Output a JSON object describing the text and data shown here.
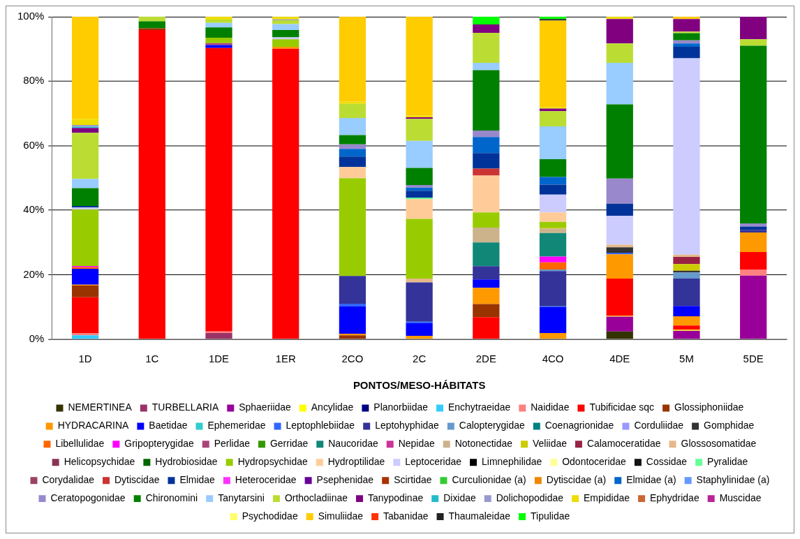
{
  "chart_data": {
    "type": "bar",
    "stacked": true,
    "xlabel": "PONTOS/MESO-HÁBITATS",
    "categories": [
      "1D",
      "1C",
      "1DE",
      "1ER",
      "2CO",
      "2C",
      "2DE",
      "4CO",
      "4DE",
      "5M",
      "5DE"
    ],
    "ylim": [
      0,
      100
    ],
    "yticks": [
      {
        "value": 0,
        "label": "0%"
      },
      {
        "value": 20,
        "label": "20%"
      },
      {
        "value": 40,
        "label": "40%"
      },
      {
        "value": 60,
        "label": "60%"
      },
      {
        "value": 80,
        "label": "80%"
      },
      {
        "value": 100,
        "label": "100%"
      }
    ],
    "grid": "y",
    "legend": "bottom",
    "series": [
      {
        "name": "NEMERTINEA",
        "color": "#333300",
        "values": [
          0,
          0,
          0,
          0,
          0,
          0,
          0,
          0,
          2.4,
          0,
          0
        ]
      },
      {
        "name": "TURBELLARIA",
        "color": "#993366",
        "values": [
          0,
          0,
          1.9,
          0,
          0,
          0,
          0,
          0,
          0,
          0,
          0
        ]
      },
      {
        "name": "Sphaeriidae",
        "color": "#990099",
        "values": [
          0,
          0,
          0,
          0,
          0,
          0,
          0,
          0,
          4.6,
          2.6,
          19.7
        ]
      },
      {
        "name": "Ancylidae",
        "color": "#ffff00",
        "values": [
          0,
          0,
          0,
          0,
          0,
          0,
          0,
          0,
          0.2,
          0.3,
          0
        ]
      },
      {
        "name": "Planorbiidae",
        "color": "#000080",
        "values": [
          0,
          0,
          0,
          0,
          0,
          0,
          0,
          0,
          0,
          0,
          0
        ]
      },
      {
        "name": "Enchytraeidae",
        "color": "#33ccff",
        "values": [
          1.2,
          0,
          0,
          0,
          0,
          0,
          0,
          0,
          0,
          0,
          0
        ]
      },
      {
        "name": "Naididae",
        "color": "#ff8080",
        "values": [
          0.7,
          0,
          0.5,
          0,
          0,
          0,
          0,
          0,
          0,
          0,
          1.8
        ]
      },
      {
        "name": "Tubificidae sqc",
        "color": "#ff0000",
        "values": [
          11.1,
          95.9,
          87.9,
          90.1,
          0,
          0,
          6.8,
          0,
          11.6,
          1.3,
          5.5
        ]
      },
      {
        "name": "Glossiphoniidae",
        "color": "#993300",
        "values": [
          3.6,
          0.5,
          0,
          0,
          1.2,
          0,
          4.1,
          0,
          0,
          0,
          0
        ]
      },
      {
        "name": "HYDRACARINA",
        "color": "#ff9900",
        "values": [
          0.3,
          0,
          0,
          0.6,
          0.5,
          1.0,
          5.0,
          1.9,
          7.5,
          2.9,
          6.1
        ]
      },
      {
        "name": "Baetidae",
        "color": "#0000ff",
        "values": [
          4.9,
          0,
          0.9,
          0,
          8.4,
          3.9,
          2.6,
          8.0,
          0,
          3.2,
          0
        ]
      },
      {
        "name": "Ephemeridae",
        "color": "#33cccc",
        "values": [
          0,
          0,
          0,
          0,
          0,
          0,
          0,
          0,
          0,
          0,
          0
        ]
      },
      {
        "name": "Leptophlebiidae",
        "color": "#3366ff",
        "values": [
          0,
          0,
          0,
          0,
          0.9,
          0.5,
          0,
          0.3,
          0.5,
          0,
          0
        ]
      },
      {
        "name": "Leptohyphidae",
        "color": "#333399",
        "values": [
          0,
          0,
          0,
          0,
          8.6,
          12.2,
          4.1,
          10.9,
          0,
          8.5,
          0.8
        ]
      },
      {
        "name": "Calopterygidae",
        "color": "#6699cc",
        "values": [
          0,
          0,
          0,
          0,
          0,
          0,
          0,
          0.5,
          0,
          1.9,
          0
        ]
      },
      {
        "name": "Coenagrionidae",
        "color": "#008080",
        "values": [
          0,
          0,
          0,
          0,
          0,
          0,
          0,
          0,
          0,
          0,
          0
        ]
      },
      {
        "name": "Corduliidae",
        "color": "#9999ff",
        "values": [
          0,
          0,
          0,
          0,
          0,
          0,
          0,
          0,
          0,
          0,
          0
        ]
      },
      {
        "name": "Gomphidae",
        "color": "#333333",
        "values": [
          0,
          0,
          0,
          0,
          0,
          0,
          0,
          0,
          1.7,
          0.5,
          0
        ]
      },
      {
        "name": "Libellulidae",
        "color": "#ff6600",
        "values": [
          0.5,
          0,
          0,
          0,
          0,
          0,
          0,
          2.2,
          0,
          0,
          0
        ]
      },
      {
        "name": "Gripopterygidae",
        "color": "#ff00ff",
        "values": [
          0.4,
          0,
          0,
          0,
          0,
          0,
          0,
          1.8,
          0,
          0,
          0
        ]
      },
      {
        "name": "Perlidae",
        "color": "#aa4477",
        "values": [
          0,
          0,
          0.6,
          0,
          0,
          0,
          0,
          0,
          0,
          0,
          0
        ]
      },
      {
        "name": "Gerridae",
        "color": "#339900",
        "values": [
          0,
          0,
          0,
          0,
          0,
          0,
          0,
          0,
          0,
          0,
          0
        ]
      },
      {
        "name": "Naucoridae",
        "color": "#118877",
        "values": [
          0,
          0,
          0,
          0,
          0,
          0,
          7.4,
          7.3,
          0,
          0,
          0
        ]
      },
      {
        "name": "Nepidae",
        "color": "#cc3399",
        "values": [
          0,
          0,
          0,
          0,
          0,
          0,
          0,
          0,
          0,
          0,
          0
        ]
      },
      {
        "name": "Notonectidae",
        "color": "#ccb38c",
        "values": [
          0,
          0,
          0,
          0,
          0,
          0,
          4.6,
          1.4,
          0,
          0,
          0
        ]
      },
      {
        "name": "Veliidae",
        "color": "#cccc00",
        "values": [
          0,
          0,
          0,
          0,
          0,
          0,
          0,
          0.3,
          0,
          2.1,
          0
        ]
      },
      {
        "name": "Calamoceratidae",
        "color": "#992244",
        "values": [
          0,
          0,
          0,
          0,
          0,
          0,
          0,
          0,
          0,
          2.2,
          0
        ]
      },
      {
        "name": "Glossosomatidae",
        "color": "#e6b88a",
        "values": [
          0,
          0,
          0,
          0,
          0,
          1.2,
          0,
          0,
          0.8,
          0.7,
          0
        ]
      },
      {
        "name": "Helicopsychidae",
        "color": "#883355",
        "values": [
          0,
          0,
          0,
          0,
          0,
          0,
          0,
          0,
          0,
          0,
          0
        ]
      },
      {
        "name": "Hydrobiosidae",
        "color": "#006600",
        "values": [
          0,
          0,
          0,
          0,
          0,
          0,
          0,
          0,
          0,
          0,
          0
        ]
      },
      {
        "name": "Hydropsychidae",
        "color": "#99cc00",
        "values": [
          17.5,
          0,
          1.7,
          2.3,
          30.3,
          18.5,
          4.7,
          1.8,
          0,
          0,
          0
        ]
      },
      {
        "name": "Hydroptilidae",
        "color": "#ffcc99",
        "values": [
          0,
          0,
          0,
          0,
          3.5,
          6.1,
          11.4,
          2.9,
          0,
          0,
          0
        ]
      },
      {
        "name": "Leptoceridae",
        "color": "#ccccff",
        "values": [
          0.6,
          0,
          0,
          0.6,
          0,
          0,
          0,
          5.5,
          9.0,
          60.9,
          0
        ]
      },
      {
        "name": "Limnephilidae",
        "color": "#000000",
        "values": [
          0,
          0,
          0,
          0,
          0,
          0,
          0,
          0,
          0,
          0,
          0
        ]
      },
      {
        "name": "Odontoceridae",
        "color": "#ffff99",
        "values": [
          0,
          0,
          0,
          0,
          0,
          0,
          0,
          0,
          0,
          0,
          0
        ]
      },
      {
        "name": "Cossidae",
        "color": "#111111",
        "values": [
          0,
          0,
          0,
          0,
          0,
          0,
          0,
          0,
          0,
          0,
          0
        ]
      },
      {
        "name": "Pyralidae",
        "color": "#66ff99",
        "values": [
          0,
          0,
          0,
          0,
          0,
          0.5,
          0,
          0,
          0,
          0,
          0
        ]
      },
      {
        "name": "Corydalidae",
        "color": "#994466",
        "values": [
          0,
          0,
          0,
          0,
          0,
          0,
          0,
          0,
          0,
          0,
          0
        ]
      },
      {
        "name": "Dytiscidae",
        "color": "#cc3333",
        "values": [
          0,
          0,
          0,
          0,
          0,
          0,
          2.2,
          0,
          0,
          0,
          0
        ]
      },
      {
        "name": "Elmidae",
        "color": "#003399",
        "values": [
          0.5,
          0,
          0,
          0,
          3.2,
          2.1,
          4.8,
          3.1,
          3.7,
          3.6,
          1.0
        ]
      },
      {
        "name": "Heteroceridae",
        "color": "#ff33ff",
        "values": [
          0,
          0,
          0,
          0,
          0,
          0,
          0,
          0,
          0,
          0,
          0
        ]
      },
      {
        "name": "Psephenidae",
        "color": "#660099",
        "values": [
          0,
          0,
          0,
          0,
          0,
          0,
          0,
          0,
          0,
          0,
          0
        ]
      },
      {
        "name": "Scirtidae",
        "color": "#aa3300",
        "values": [
          0,
          0,
          0,
          0,
          0,
          0,
          0,
          0,
          0,
          0,
          0
        ]
      },
      {
        "name": "Curculionidae (a)",
        "color": "#33cc33",
        "values": [
          0,
          0,
          0,
          0,
          0,
          0,
          0,
          0,
          0,
          0,
          0
        ]
      },
      {
        "name": "Dytiscidae (a)",
        "color": "#ee8800",
        "values": [
          0,
          0,
          0,
          0,
          0,
          0,
          0,
          0,
          0,
          0,
          0
        ]
      },
      {
        "name": "Elmidae (a)",
        "color": "#0066cc",
        "values": [
          0,
          0,
          0,
          0,
          2.4,
          1.0,
          5.0,
          2.4,
          0,
          1.0,
          0
        ]
      },
      {
        "name": "Staphylinidae (a)",
        "color": "#6699ff",
        "values": [
          0,
          0,
          0,
          0,
          0,
          0,
          0,
          0,
          0,
          0,
          0
        ]
      },
      {
        "name": "Ceratopogonidae",
        "color": "#9988cc",
        "values": [
          0,
          0,
          0,
          0,
          1.4,
          0.8,
          2.0,
          0,
          7.8,
          1.0,
          1.0
        ]
      },
      {
        "name": "Chironomini",
        "color": "#008000",
        "values": [
          5.5,
          2.2,
          3.2,
          2.3,
          2.9,
          5.3,
          18.7,
          5.5,
          23.0,
          2.2,
          55.1
        ]
      },
      {
        "name": "Tanytarsini",
        "color": "#99ccff",
        "values": [
          2.9,
          0,
          1.4,
          1.8,
          5.3,
          8.4,
          2.3,
          10.2,
          12.9,
          0,
          0
        ]
      },
      {
        "name": "Orthocladiinae",
        "color": "#bbdd33",
        "values": [
          14.3,
          1.4,
          1.0,
          1.2,
          4.4,
          6.8,
          9.3,
          4.7,
          6.0,
          0.5,
          2.0
        ]
      },
      {
        "name": "Tanypodinae",
        "color": "#800080",
        "values": [
          1.5,
          0,
          0,
          0,
          0,
          0.5,
          2.6,
          0.8,
          7.6,
          3.9,
          7.0
        ]
      },
      {
        "name": "Dixidae",
        "color": "#22bbcc",
        "values": [
          0.4,
          0,
          0,
          0,
          0,
          0,
          0,
          0,
          0,
          0,
          0
        ]
      },
      {
        "name": "Dolichopodidae",
        "color": "#9999cc",
        "values": [
          0.5,
          0,
          0,
          0.3,
          0,
          0,
          0,
          0,
          0,
          0,
          0
        ]
      },
      {
        "name": "Empididae",
        "color": "#eedd00",
        "values": [
          1.9,
          0,
          0.9,
          0.8,
          0.7,
          0.5,
          0,
          0.5,
          0.7,
          0,
          0
        ]
      },
      {
        "name": "Ephydridae",
        "color": "#cc6633",
        "values": [
          0,
          0,
          0,
          0,
          0,
          0,
          0,
          0,
          0,
          0,
          0
        ]
      },
      {
        "name": "Muscidae",
        "color": "#bb2299",
        "values": [
          0,
          0,
          0,
          0,
          0,
          0,
          0,
          0,
          0,
          0,
          0
        ]
      },
      {
        "name": "Psychodidae",
        "color": "#ffff66",
        "values": [
          0,
          0,
          0,
          0,
          0,
          0,
          0,
          0,
          0,
          0,
          0
        ]
      },
      {
        "name": "Simuliidae",
        "color": "#ffcc00",
        "values": [
          31.7,
          0,
          0,
          0,
          26.3,
          30.7,
          0,
          26.8,
          0,
          0.7,
          0
        ]
      },
      {
        "name": "Tabanidae",
        "color": "#ff3300",
        "values": [
          0,
          0,
          0,
          0,
          0,
          0,
          0,
          0,
          0,
          0,
          0
        ]
      },
      {
        "name": "Thaumaleidae",
        "color": "#222222",
        "values": [
          0,
          0,
          0,
          0,
          0,
          0,
          0,
          0.5,
          0,
          0,
          0
        ]
      },
      {
        "name": "Tipulidae",
        "color": "#00ff00",
        "values": [
          0,
          0,
          0,
          0,
          0,
          0,
          2.4,
          0.7,
          0,
          0,
          0
        ]
      }
    ]
  }
}
